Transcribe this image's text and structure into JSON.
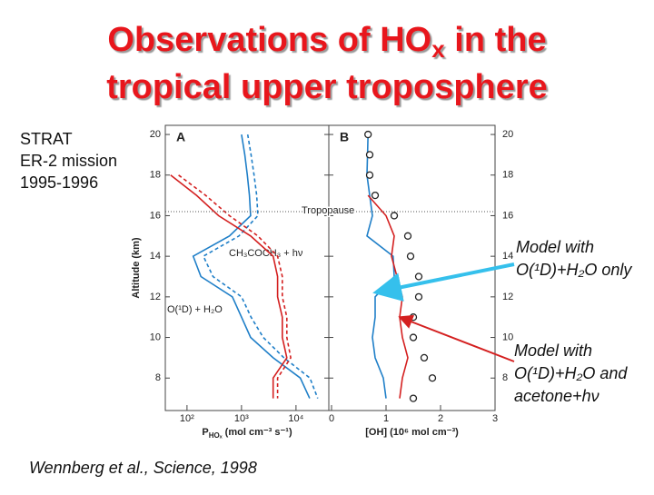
{
  "slide": {
    "title_line1": "Observations of HO",
    "title_sub": "x",
    "title_line1_end": " in the",
    "title_line2": "tropical upper troposphere",
    "mission": [
      "STRAT",
      "ER-2 mission",
      "1995-1996"
    ],
    "citation": "Wennberg et al., Science, 1998",
    "note_blue": [
      "Model with",
      "O(¹D)+H₂O only"
    ],
    "note_red": [
      "Model with",
      "O(¹D)+H₂O and",
      "acetone+hν"
    ]
  },
  "chart_data": [
    {
      "type": "line",
      "panel_label": "A",
      "x_log": true,
      "ylabel": "Altitude (km)",
      "xlabel": {
        "main": "P",
        "sub": "HOₓ",
        "rest": " (mol cm⁻³ s⁻¹)"
      },
      "xlim": [
        40,
        40000
      ],
      "xticks": [
        {
          "value": 100,
          "label": "10²"
        },
        {
          "value": 1000,
          "label": "10³"
        },
        {
          "value": 10000,
          "label": "10⁴"
        }
      ],
      "ylim": [
        6.4,
        20.45
      ],
      "yticks": [
        8,
        10,
        12,
        14,
        16,
        18,
        20
      ],
      "annotations": [
        {
          "text": "CH₃COCH₃ + hν",
          "color": "#d42020"
        },
        {
          "text": "O(¹D) + H₂O",
          "color": "#1f7fc8"
        }
      ],
      "y": [
        20,
        19,
        18,
        17,
        16,
        15,
        14,
        13,
        12,
        11,
        10,
        9,
        8,
        7
      ],
      "series": [
        {
          "name": "O(¹D) + H₂O",
          "color": "#1f7fc8",
          "dash": false,
          "values": [
            1000,
            1150,
            1280,
            1400,
            1470,
            600,
            130,
            180,
            680,
            1000,
            1470,
            3800,
            12000,
            17800
          ]
        },
        {
          "name": "O(¹D) + H₂O dashed",
          "color": "#1f7fc8",
          "dash": true,
          "values": [
            1300,
            1500,
            1700,
            1900,
            2000,
            900,
            200,
            300,
            1000,
            1500,
            2500,
            6000,
            18000,
            25000
          ]
        },
        {
          "name": "CH₃COCH₃ + hν",
          "color": "#d42020",
          "dash": false,
          "values": [
            null,
            null,
            50,
            150,
            380,
            1470,
            3800,
            4600,
            4600,
            5600,
            5600,
            6800,
            3800,
            3800
          ]
        },
        {
          "name": "CH₃COCH₃ + hν dashed",
          "color": "#d42020",
          "dash": true,
          "values": [
            null,
            null,
            70,
            220,
            600,
            2000,
            4600,
            5600,
            5600,
            6800,
            6800,
            8000,
            4600,
            4600
          ]
        }
      ]
    },
    {
      "type": "line",
      "panel_label": "B",
      "x_log": false,
      "xlabel": {
        "main": "[OH] (10⁶ mol cm⁻³)"
      },
      "xlim": [
        -0.05,
        3
      ],
      "xticks": [
        0,
        1,
        2,
        3
      ],
      "ylim": [
        6.4,
        20.45
      ],
      "yticks": [
        8,
        10,
        12,
        14,
        16,
        18,
        20
      ],
      "tropopause": {
        "text": "Tropopause",
        "altitude": 16.2
      },
      "y": [
        20,
        19,
        18,
        17,
        16,
        15,
        14,
        13,
        12,
        11,
        10,
        9,
        8,
        7
      ],
      "series": [
        {
          "name": "Model O(¹D)+H₂O",
          "color": "#1f7fc8",
          "markers": false,
          "values": [
            0.67,
            0.66,
            0.65,
            0.7,
            0.75,
            0.65,
            1.13,
            1.15,
            0.8,
            0.8,
            0.75,
            0.8,
            0.95,
            1.0
          ]
        },
        {
          "name": "Model acetone",
          "color": "#d42020",
          "markers": false,
          "values": [
            null,
            null,
            null,
            0.67,
            1.0,
            1.15,
            1.1,
            1.2,
            1.3,
            1.25,
            1.3,
            1.4,
            1.3,
            1.25
          ]
        },
        {
          "name": "Observations",
          "color": "#222222",
          "markers": true,
          "values": [
            0.67,
            0.7,
            0.7,
            0.8,
            1.15,
            1.4,
            1.45,
            1.6,
            1.6,
            1.5,
            1.5,
            1.7,
            1.85,
            1.5
          ]
        }
      ]
    }
  ]
}
